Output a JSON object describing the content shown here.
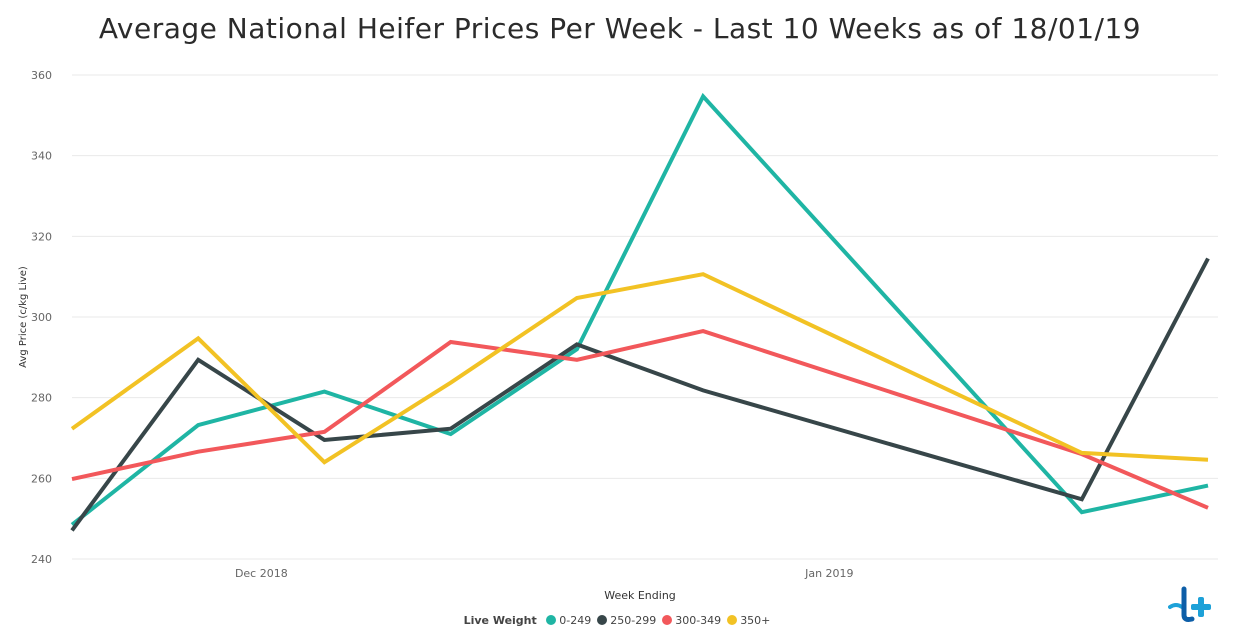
{
  "chart_data": {
    "type": "line",
    "title": "Average National Heifer Prices Per Week - Last 10 Weeks as of 18/01/19",
    "xlabel": "Week Ending",
    "ylabel": "Avg Price (c/kg Live)",
    "ylim": [
      240,
      360
    ],
    "yticks": [
      240,
      260,
      280,
      300,
      320,
      340,
      360
    ],
    "x_tick_labels": [
      {
        "label": "Dec 2018",
        "at_week": 2.5
      },
      {
        "label": "Jan 2019",
        "at_week": 7.0
      }
    ],
    "x": [
      1,
      2,
      3,
      4,
      5,
      6,
      7,
      8,
      9,
      10
    ],
    "grid": "horizontal",
    "legend_title": "Live Weight",
    "legend_position": "bottom",
    "series": [
      {
        "name": "0-249",
        "color": "#1fb5a4",
        "points": [
          [
            0.0,
            248.5
          ],
          [
            1.0,
            273.2
          ],
          [
            2.0,
            281.5
          ],
          [
            3.0,
            271.0
          ],
          [
            4.0,
            292.0
          ],
          [
            5.0,
            354.7
          ],
          [
            8.0,
            251.6
          ],
          [
            9.0,
            258.2
          ]
        ]
      },
      {
        "name": "250-299",
        "color": "#374649",
        "points": [
          [
            0.0,
            247.1
          ],
          [
            1.0,
            289.4
          ],
          [
            2.0,
            269.5
          ],
          [
            3.0,
            272.3
          ],
          [
            4.0,
            293.2
          ],
          [
            5.0,
            281.8
          ],
          [
            8.0,
            254.8
          ],
          [
            9.0,
            314.5
          ]
        ]
      },
      {
        "name": "300-349",
        "color": "#f2585b",
        "points": [
          [
            0.0,
            259.8
          ],
          [
            1.0,
            266.6
          ],
          [
            2.0,
            271.5
          ],
          [
            3.0,
            293.8
          ],
          [
            4.0,
            289.4
          ],
          [
            5.0,
            296.5
          ],
          [
            8.0,
            266.0
          ],
          [
            9.0,
            252.7
          ]
        ]
      },
      {
        "name": "350+",
        "color": "#f2c224",
        "points": [
          [
            0.0,
            272.3
          ],
          [
            1.0,
            294.7
          ],
          [
            2.0,
            264.0
          ],
          [
            3.0,
            283.7
          ],
          [
            4.0,
            304.7
          ],
          [
            5.0,
            310.6
          ],
          [
            8.0,
            266.3
          ],
          [
            9.0,
            264.6
          ]
        ]
      }
    ]
  },
  "logo": {
    "name": "tick-plus-logo",
    "colors": [
      "#1da1d8",
      "#0d5ea8"
    ]
  }
}
